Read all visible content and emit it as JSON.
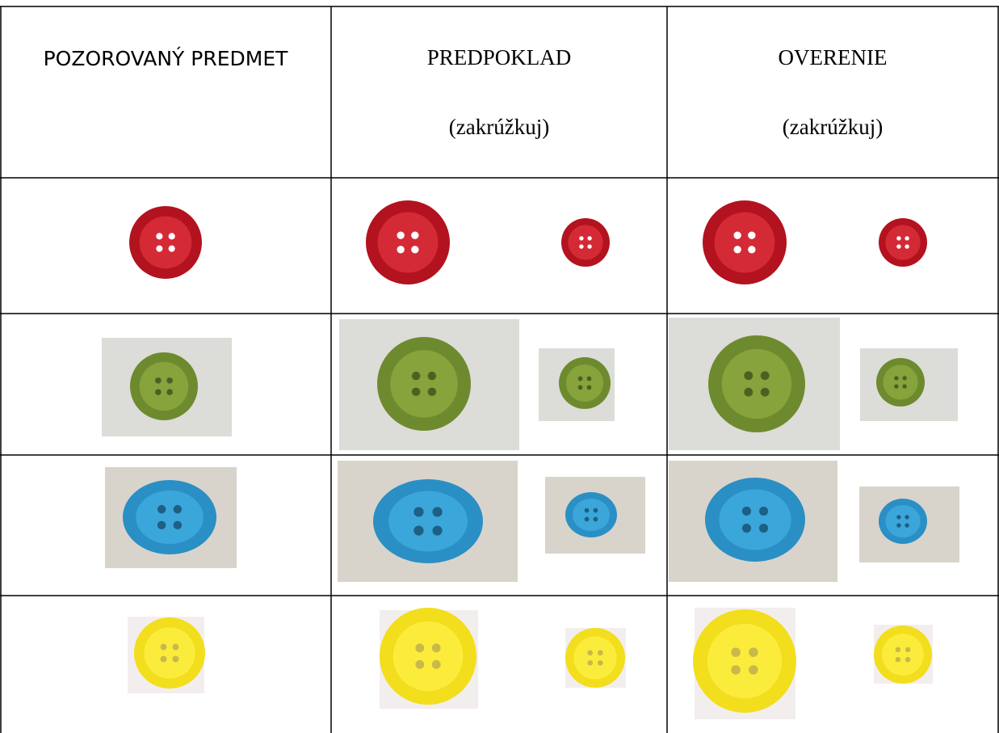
{
  "table": {
    "header": {
      "observed": "POZOROVANÝ PREDMET",
      "assumption": {
        "title": "PREDPOKLAD",
        "note": "(zakrúžkuj)"
      },
      "verification": {
        "title": "OVERENIE",
        "note": "(zakrúžkuj)"
      }
    }
  }
}
